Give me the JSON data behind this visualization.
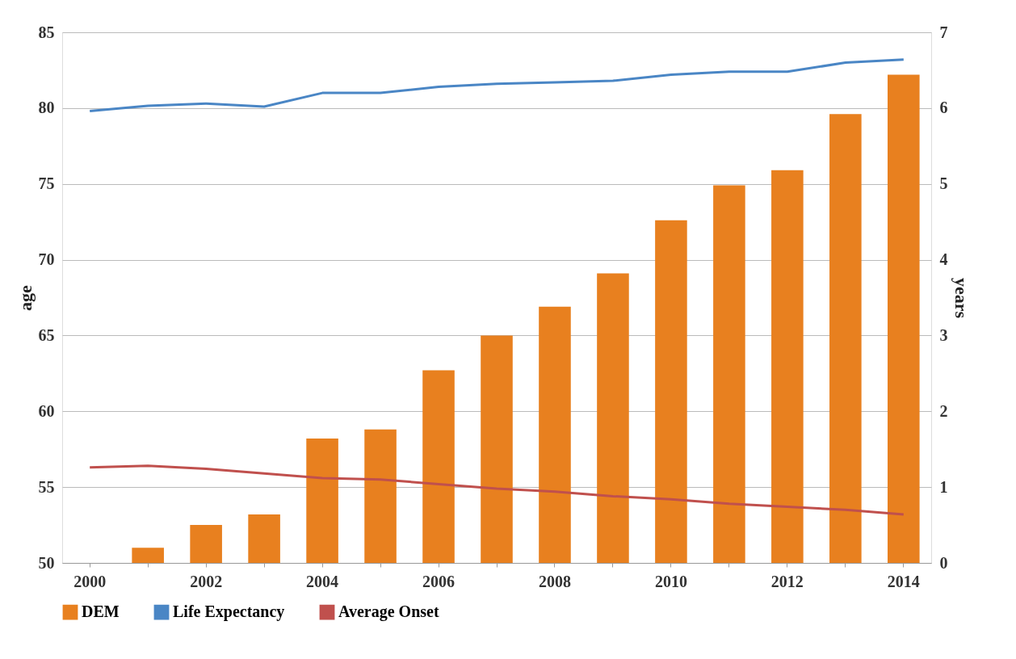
{
  "chart_data": {
    "type": "line",
    "ylabel": "age",
    "y2label": "years",
    "categories": [
      "2000",
      null,
      "2002",
      null,
      "2004",
      null,
      "2006",
      null,
      "2008",
      null,
      "2010",
      null,
      "2012",
      null,
      "2014"
    ],
    "series": [
      {
        "name": "DEM",
        "type": "bar",
        "axis": "y2",
        "color": "#e8801f",
        "values": [
          null,
          0.2,
          0.5,
          0.64,
          1.64,
          1.76,
          2.54,
          3.0,
          3.38,
          3.82,
          4.52,
          4.98,
          5.18,
          5.92,
          6.44
        ]
      },
      {
        "name": "Life Expectancy",
        "color": "#4a86c5",
        "values": [
          79.8,
          80.15,
          80.3,
          80.1,
          81.0,
          81.0,
          81.4,
          81.6,
          81.7,
          81.8,
          82.2,
          82.4,
          82.4,
          83.0,
          83.2
        ]
      },
      {
        "name": "Average Onset",
        "color": "#c0504d",
        "values": [
          56.3,
          56.4,
          56.2,
          55.9,
          55.6,
          55.5,
          55.2,
          54.9,
          54.7,
          54.4,
          54.2,
          53.9,
          53.7,
          53.5,
          53.2
        ]
      }
    ],
    "ylim": [
      50,
      85
    ],
    "yticks": [
      50,
      55,
      60,
      65,
      70,
      75,
      80,
      85
    ],
    "y2lim": [
      0,
      7
    ],
    "y2ticks": [
      0,
      1,
      2,
      3,
      4,
      5,
      6,
      7
    ],
    "grid": "y",
    "legend": "bottom"
  }
}
